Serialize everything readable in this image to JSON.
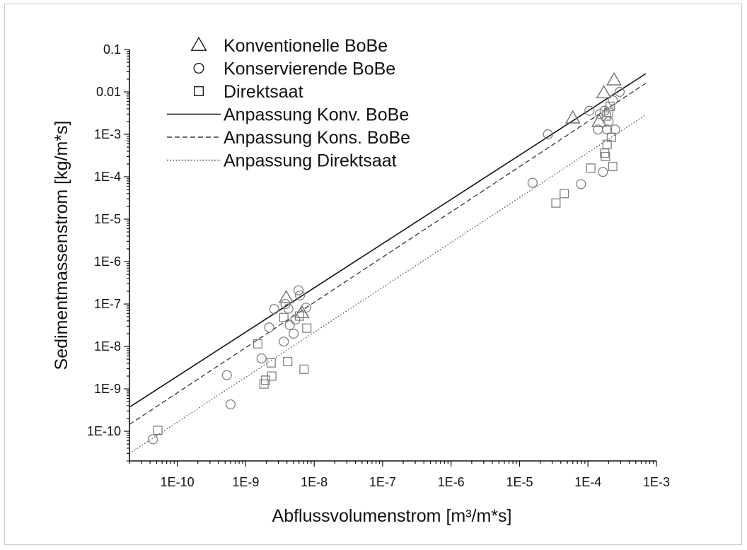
{
  "chart_data": {
    "type": "scatter",
    "xlabel": "Abflussvolumenstrom [m³/m*s]",
    "ylabel": "Sedimentmassenstrom [kg/m*s]",
    "x_scale": "log",
    "y_scale": "log",
    "xlim": [
      2e-11,
      0.001
    ],
    "ylim": [
      2e-11,
      0.1
    ],
    "x_tick_values": [
      1e-10,
      1e-09,
      1e-08,
      1e-07,
      1e-06,
      1e-05,
      0.0001,
      0.001
    ],
    "x_tick_labels": [
      "1E-10",
      "1E-9",
      "1E-8",
      "1E-7",
      "1E-6",
      "1E-5",
      "1E-4",
      "1E-3"
    ],
    "y_tick_values": [
      1e-10,
      1e-09,
      1e-08,
      1e-07,
      1e-06,
      1e-05,
      0.0001,
      0.001,
      0.01,
      0.1
    ],
    "y_tick_labels": [
      "1E-10",
      "1E-9",
      "1E-8",
      "1E-7",
      "1E-6",
      "1E-5",
      "1E-4",
      "1E-3",
      "0.01",
      "0.1"
    ],
    "grid": false,
    "legend_position": "top-left",
    "series": [
      {
        "name": "Konventionelle BoBe",
        "kind": "points",
        "marker": "triangle",
        "color": "#666666",
        "points": [
          [
            3.9e-09,
            1.4e-07
          ],
          [
            6.6e-09,
            6.2e-08
          ],
          [
            6e-05,
            0.0024
          ],
          [
            0.000145,
            0.002
          ],
          [
            0.00017,
            0.0094
          ],
          [
            0.00024,
            0.019
          ]
        ]
      },
      {
        "name": "Konservierende BoBe",
        "kind": "points",
        "marker": "circle",
        "color": "#808080",
        "points": [
          [
            4.4e-11,
            6.5e-11
          ],
          [
            5.3e-10,
            2.1e-09
          ],
          [
            6e-10,
            4.3e-10
          ],
          [
            1.7e-09,
            5.2e-09
          ],
          [
            2.2e-09,
            2.8e-08
          ],
          [
            2.6e-09,
            7.6e-08
          ],
          [
            3.6e-09,
            1.3e-08
          ],
          [
            3.8e-09,
            1e-07
          ],
          [
            4.2e-09,
            7.8e-08
          ],
          [
            4.4e-09,
            3.2e-08
          ],
          [
            5e-09,
            2e-08
          ],
          [
            5.3e-09,
            4.3e-08
          ],
          [
            5.9e-09,
            2.1e-07
          ],
          [
            6.2e-09,
            1.6e-07
          ],
          [
            7.6e-09,
            8.2e-08
          ],
          [
            1.55e-05,
            7.2e-05
          ],
          [
            2.6e-05,
            0.001
          ],
          [
            7.9e-05,
            6.7e-05
          ],
          [
            0.000105,
            0.0036
          ],
          [
            0.00014,
            0.0013
          ],
          [
            0.00015,
            0.003
          ],
          [
            0.000165,
            0.00013
          ],
          [
            0.000175,
            0.0036
          ],
          [
            0.00019,
            0.0013
          ],
          [
            0.0002,
            0.002
          ],
          [
            0.00023,
            0.0063
          ],
          [
            0.00025,
            0.0013
          ],
          [
            0.00029,
            0.01
          ]
        ]
      },
      {
        "name": "Direktsaat",
        "kind": "points",
        "marker": "square",
        "color": "#808080",
        "points": [
          [
            5.2e-11,
            1.05e-10
          ],
          [
            1.5e-09,
            1.15e-08
          ],
          [
            1.85e-09,
            1.3e-09
          ],
          [
            1.95e-09,
            1.6e-09
          ],
          [
            2.35e-09,
            4.1e-09
          ],
          [
            2.4e-09,
            2e-09
          ],
          [
            3.6e-09,
            4.8e-08
          ],
          [
            4.1e-09,
            4.4e-09
          ],
          [
            6.1e-09,
            5.2e-08
          ],
          [
            7.1e-09,
            2.9e-09
          ],
          [
            7.8e-09,
            2.7e-08
          ],
          [
            3.4e-05,
            2.4e-05
          ],
          [
            4.5e-05,
            4e-05
          ],
          [
            0.00011,
            0.00016
          ],
          [
            0.000175,
            0.00036
          ],
          [
            0.00018,
            0.0003
          ],
          [
            0.000185,
            0.0027
          ],
          [
            0.00019,
            0.00058
          ],
          [
            0.0002,
            0.0033
          ],
          [
            0.00021,
            0.0046
          ],
          [
            0.00022,
            0.00085
          ],
          [
            0.00023,
            0.000175
          ]
        ]
      },
      {
        "name": "Anpassung Konv. BoBe",
        "kind": "line",
        "dash": "solid",
        "color": "#111111",
        "from": [
          2e-11,
          3.7e-10
        ],
        "to": [
          0.0007,
          0.027
        ]
      },
      {
        "name": "Anpassung Kons. BoBe",
        "kind": "line",
        "dash": "dashed",
        "color": "#333333",
        "from": [
          2e-11,
          1.45e-10
        ],
        "to": [
          0.0007,
          0.016
        ]
      },
      {
        "name": "Anpassung Direktsaat",
        "kind": "line",
        "dash": "dotted",
        "color": "#555555",
        "from": [
          2e-11,
          3e-11
        ],
        "to": [
          0.0007,
          0.0029
        ]
      }
    ]
  }
}
